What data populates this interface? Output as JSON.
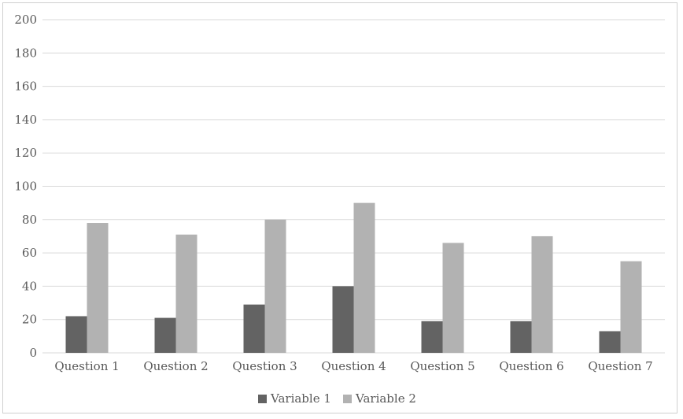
{
  "chart_data": {
    "type": "bar",
    "categories": [
      "Question 1",
      "Question 2",
      "Question 3",
      "Question 4",
      "Question 5",
      "Question 6",
      "Question 7"
    ],
    "series": [
      {
        "name": "Variable 1",
        "color": "#636363",
        "values": [
          22,
          21,
          29,
          40,
          19,
          19,
          13
        ]
      },
      {
        "name": "Variable 2",
        "color": "#b2b2b2",
        "values": [
          78,
          71,
          80,
          90,
          66,
          70,
          55
        ]
      }
    ],
    "ylim": [
      0,
      200
    ],
    "yticks": [
      0,
      20,
      40,
      60,
      80,
      100,
      120,
      140,
      160,
      180,
      200
    ],
    "title": "",
    "xlabel": "",
    "ylabel": "",
    "grid": true,
    "legend": "bottom-center",
    "colors": {
      "gridline": "#d9d9d9",
      "axis_text": "#595959",
      "border": "#d0d0d0"
    }
  }
}
